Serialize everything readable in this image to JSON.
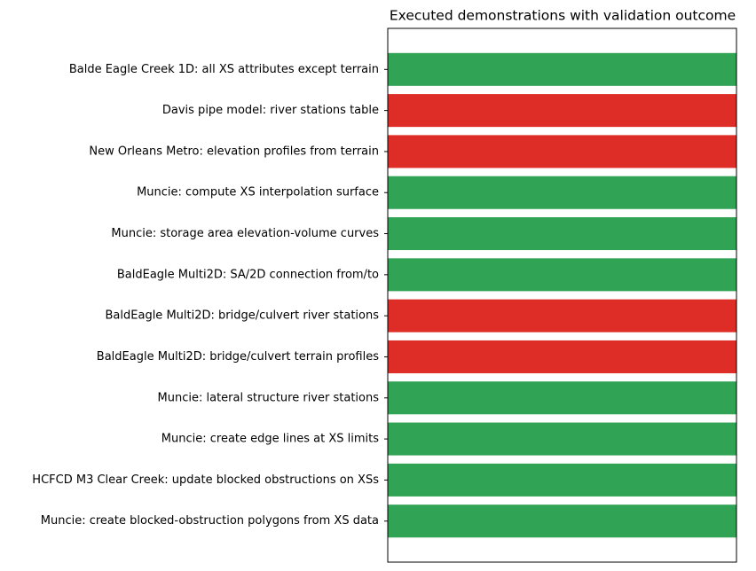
{
  "chart_data": {
    "type": "barh",
    "title": "Executed demonstrations with validation outcome",
    "categories": [
      "Balde Eagle Creek 1D: all XS attributes except terrain",
      "Davis pipe model: river stations table",
      "New Orleans Metro: elevation profiles from terrain",
      "Muncie: compute XS interpolation surface",
      "Muncie: storage area elevation-volume curves",
      "BaldEagle Multi2D: SA/2D connection from/to",
      "BaldEagle Multi2D: bridge/culvert river stations",
      "BaldEagle Multi2D: bridge/culvert terrain profiles",
      "Muncie: lateral structure river stations",
      "Muncie: create edge lines at XS limits",
      "HCFCD M3 Clear Creek: update blocked obstructions on XSs",
      "Muncie: create blocked-obstruction polygons from XS data"
    ],
    "values": [
      1,
      1,
      1,
      1,
      1,
      1,
      1,
      1,
      1,
      1,
      1,
      1
    ],
    "colors": [
      "#31a354",
      "#de2d26",
      "#de2d26",
      "#31a354",
      "#31a354",
      "#31a354",
      "#de2d26",
      "#de2d26",
      "#31a354",
      "#31a354",
      "#31a354",
      "#31a354"
    ],
    "xlim": [
      0,
      1
    ]
  }
}
